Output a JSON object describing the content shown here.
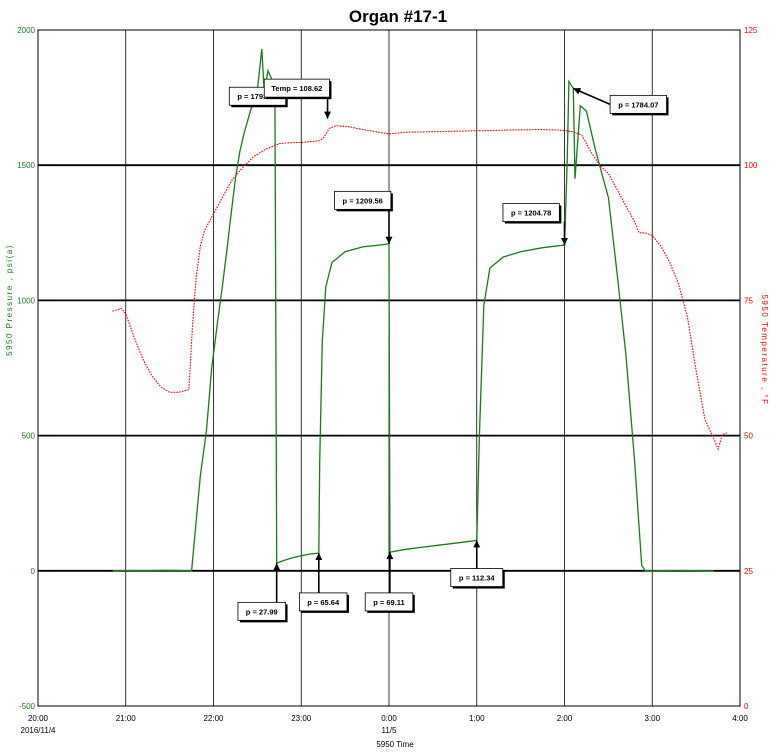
{
  "chart_data": {
    "type": "line",
    "title": "Organ #17-1",
    "xlabel": "5950 Time",
    "ylabel_left": "5950 Pressure , psi(a)",
    "ylabel_right": "5950 Temperature , °F",
    "x_ticks": [
      {
        "label": "20:00",
        "sub": "2016/11/4"
      },
      {
        "label": "21:00",
        "sub": ""
      },
      {
        "label": "22:00",
        "sub": ""
      },
      {
        "label": "23:00",
        "sub": ""
      },
      {
        "label": "0:00",
        "sub": "11/5"
      },
      {
        "label": "1:00",
        "sub": ""
      },
      {
        "label": "2:00",
        "sub": ""
      },
      {
        "label": "3:00",
        "sub": ""
      },
      {
        "label": "4:00",
        "sub": ""
      }
    ],
    "x_range_hours": [
      0,
      8
    ],
    "y_left_ticks": [
      "2000",
      "1500",
      "1000",
      "500",
      "0",
      "-500"
    ],
    "y_left_range": [
      -500,
      2000
    ],
    "y_right_ticks": [
      "125",
      "100",
      "75",
      "50",
      "25",
      "0"
    ],
    "y_right_range": [
      0,
      125
    ],
    "series": [
      {
        "name": "5950 Pressure",
        "axis": "left",
        "color": "#1a7a1a",
        "points": [
          [
            0.85,
            0
          ],
          [
            1.1,
            1
          ],
          [
            1.2,
            0
          ],
          [
            1.45,
            2
          ],
          [
            1.6,
            1
          ],
          [
            1.75,
            0
          ],
          [
            1.85,
            350
          ],
          [
            1.92,
            520
          ],
          [
            1.98,
            750
          ],
          [
            2.05,
            930
          ],
          [
            2.1,
            1050
          ],
          [
            2.15,
            1180
          ],
          [
            2.2,
            1320
          ],
          [
            2.25,
            1450
          ],
          [
            2.3,
            1550
          ],
          [
            2.35,
            1620
          ],
          [
            2.42,
            1700
          ],
          [
            2.5,
            1780
          ],
          [
            2.55,
            1930
          ],
          [
            2.58,
            1760
          ],
          [
            2.62,
            1850
          ],
          [
            2.7,
            1793.43
          ],
          [
            2.72,
            27.99
          ],
          [
            2.8,
            38
          ],
          [
            2.9,
            48
          ],
          [
            3.0,
            56
          ],
          [
            3.1,
            62
          ],
          [
            3.2,
            65.64
          ],
          [
            3.21,
            400
          ],
          [
            3.24,
            850
          ],
          [
            3.28,
            1050
          ],
          [
            3.35,
            1140
          ],
          [
            3.5,
            1180
          ],
          [
            3.7,
            1198
          ],
          [
            3.9,
            1205
          ],
          [
            4.0,
            1209.56
          ],
          [
            4.01,
            69.11
          ],
          [
            4.2,
            80
          ],
          [
            4.4,
            88
          ],
          [
            4.6,
            96
          ],
          [
            4.8,
            104
          ],
          [
            5.0,
            112.34
          ],
          [
            5.03,
            500
          ],
          [
            5.08,
            980
          ],
          [
            5.15,
            1120
          ],
          [
            5.3,
            1160
          ],
          [
            5.5,
            1180
          ],
          [
            5.75,
            1195
          ],
          [
            6.0,
            1204.78
          ],
          [
            6.03,
            1500
          ],
          [
            6.05,
            1810
          ],
          [
            6.1,
            1784.07
          ],
          [
            6.12,
            1450
          ],
          [
            6.18,
            1720
          ],
          [
            6.25,
            1700
          ],
          [
            6.35,
            1560
          ],
          [
            6.5,
            1380
          ],
          [
            6.6,
            1100
          ],
          [
            6.7,
            800
          ],
          [
            6.8,
            400
          ],
          [
            6.88,
            20
          ],
          [
            6.92,
            0
          ],
          [
            7.3,
            1
          ],
          [
            7.7,
            0
          ]
        ]
      },
      {
        "name": "5950 Temperature",
        "axis": "right",
        "color": "#ff0000",
        "points": [
          [
            0.85,
            73
          ],
          [
            0.95,
            73.5
          ],
          [
            1.0,
            72.5
          ],
          [
            1.1,
            68
          ],
          [
            1.2,
            64
          ],
          [
            1.3,
            61
          ],
          [
            1.4,
            59
          ],
          [
            1.5,
            58
          ],
          [
            1.6,
            58
          ],
          [
            1.72,
            58.5
          ],
          [
            1.76,
            70
          ],
          [
            1.8,
            79
          ],
          [
            1.85,
            85
          ],
          [
            1.9,
            88
          ],
          [
            2.0,
            91
          ],
          [
            2.1,
            94
          ],
          [
            2.2,
            97
          ],
          [
            2.3,
            99
          ],
          [
            2.45,
            101.5
          ],
          [
            2.6,
            103
          ],
          [
            2.75,
            104
          ],
          [
            2.9,
            104.2
          ],
          [
            3.0,
            104.2
          ],
          [
            3.2,
            104.5
          ],
          [
            3.25,
            105
          ],
          [
            3.32,
            106.8
          ],
          [
            3.4,
            107.3
          ],
          [
            3.55,
            107.1
          ],
          [
            3.7,
            106.6
          ],
          [
            3.85,
            106.2
          ],
          [
            4.0,
            105.8
          ],
          [
            4.2,
            106.1
          ],
          [
            4.5,
            106.2
          ],
          [
            4.8,
            106.3
          ],
          [
            5.1,
            106.4
          ],
          [
            5.4,
            106.5
          ],
          [
            5.7,
            106.6
          ],
          [
            5.92,
            106.5
          ],
          [
            6.0,
            106.4
          ],
          [
            6.1,
            106.2
          ],
          [
            6.2,
            105.5
          ],
          [
            6.3,
            102.5
          ],
          [
            6.4,
            100
          ],
          [
            6.5,
            98.5
          ],
          [
            6.6,
            95.5
          ],
          [
            6.7,
            92.5
          ],
          [
            6.8,
            89.5
          ],
          [
            6.85,
            87.5
          ],
          [
            6.92,
            87.5
          ],
          [
            7.0,
            87
          ],
          [
            7.1,
            85
          ],
          [
            7.2,
            82
          ],
          [
            7.3,
            78
          ],
          [
            7.4,
            72
          ],
          [
            7.5,
            62
          ],
          [
            7.6,
            53
          ],
          [
            7.7,
            49.5
          ],
          [
            7.75,
            47.5
          ],
          [
            7.8,
            50.2
          ],
          [
            7.85,
            50.5
          ]
        ]
      }
    ],
    "annotations": [
      {
        "text": "p = 1793.43",
        "x": 2.7,
        "y": 1793.43,
        "axis": "left",
        "box_at": [
          2.18,
          1755
        ],
        "arrow": "right"
      },
      {
        "text": "Temp = 108.62",
        "x": 3.3,
        "y": 108.62,
        "axis": "right",
        "box_at": [
          2.95,
          1785
        ],
        "arrow": "down"
      },
      {
        "text": "p = 1209.56",
        "x": 4.0,
        "y": 1209.56,
        "axis": "left",
        "box_at": [
          3.7,
          1370
        ],
        "arrow": "down"
      },
      {
        "text": "p = 1204.78",
        "x": 6.0,
        "y": 1204.78,
        "axis": "left",
        "box_at": [
          5.62,
          1325
        ],
        "arrow": "down"
      },
      {
        "text": "p = 1784.07",
        "x": 6.1,
        "y": 1784.07,
        "axis": "left",
        "box_at": [
          6.52,
          1725
        ],
        "arrow": "left"
      },
      {
        "text": "p = 27.99",
        "x": 2.72,
        "y": 27.99,
        "axis": "left",
        "box_at": [
          2.55,
          -150
        ],
        "arrow": "up"
      },
      {
        "text": "p = 65.64",
        "x": 3.2,
        "y": 65.64,
        "axis": "left",
        "box_at": [
          3.25,
          -115
        ],
        "arrow": "up"
      },
      {
        "text": "p = 69.11",
        "x": 4.01,
        "y": 69.11,
        "axis": "left",
        "box_at": [
          4.0,
          -115
        ],
        "arrow": "up"
      },
      {
        "text": "p = 112.34",
        "x": 5.0,
        "y": 112.34,
        "axis": "left",
        "box_at": [
          5.0,
          -25
        ],
        "arrow": "up"
      }
    ],
    "grid": true,
    "legend": "none"
  }
}
